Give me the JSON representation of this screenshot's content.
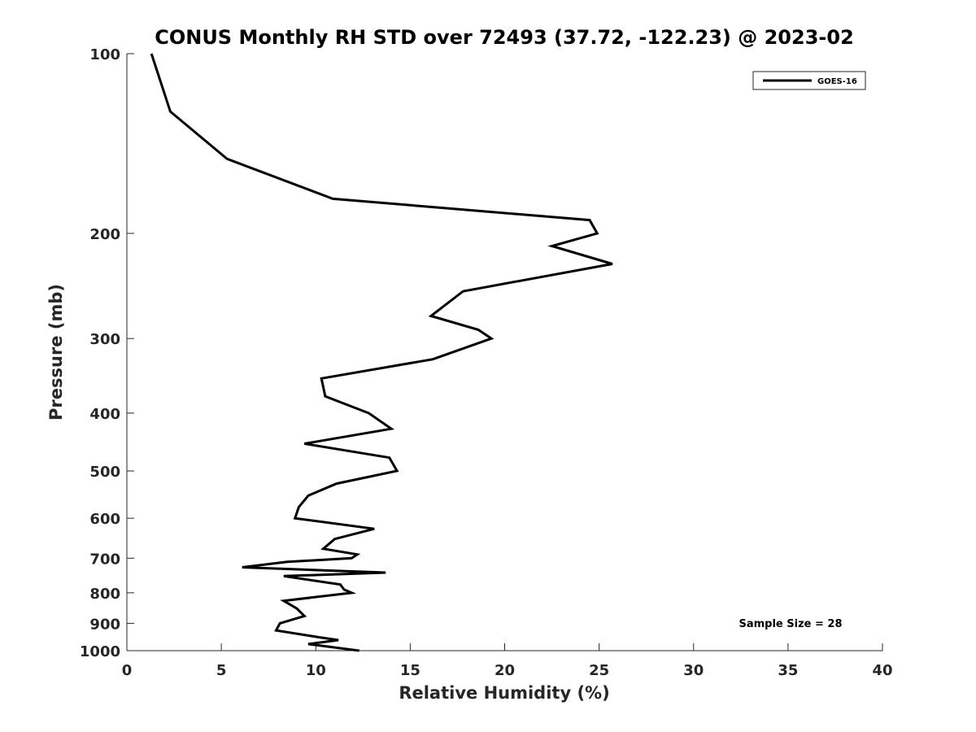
{
  "chart_data": {
    "type": "line",
    "title": "CONUS Monthly RH STD over 72493 (37.72, -122.23) @ 2023-02",
    "xlabel": "Relative Humidity (%)",
    "ylabel": "Pressure (mb)",
    "xlim": [
      0,
      40
    ],
    "ylim": [
      100,
      1000
    ],
    "y_scale": "log",
    "y_reversed": true,
    "x_ticks": [
      "0",
      "5",
      "10",
      "15",
      "20",
      "25",
      "30",
      "35",
      "40"
    ],
    "y_ticks": [
      "100",
      "200",
      "300",
      "400",
      "500",
      "600",
      "700",
      "800",
      "900",
      "1000"
    ],
    "grid": false,
    "legend_position": "top-right",
    "annotation": "Sample Size = 28",
    "series": [
      {
        "name": "GOES-16",
        "color": "#000000",
        "points": [
          [
            1.3,
            100
          ],
          [
            2.3,
            125
          ],
          [
            5.3,
            150
          ],
          [
            10.9,
            175
          ],
          [
            24.5,
            190
          ],
          [
            24.9,
            200
          ],
          [
            22.5,
            210
          ],
          [
            25.7,
            225
          ],
          [
            17.8,
            250
          ],
          [
            16.1,
            275
          ],
          [
            18.6,
            290
          ],
          [
            19.3,
            300
          ],
          [
            16.2,
            325
          ],
          [
            10.3,
            350
          ],
          [
            10.5,
            375
          ],
          [
            12.8,
            400
          ],
          [
            14.0,
            425
          ],
          [
            9.4,
            450
          ],
          [
            13.9,
            475
          ],
          [
            14.3,
            500
          ],
          [
            11.1,
            525
          ],
          [
            9.6,
            550
          ],
          [
            9.1,
            575
          ],
          [
            8.9,
            600
          ],
          [
            13.1,
            625
          ],
          [
            11.0,
            650
          ],
          [
            10.4,
            675
          ],
          [
            12.2,
            690
          ],
          [
            11.9,
            700
          ],
          [
            8.5,
            710
          ],
          [
            6.1,
            725
          ],
          [
            13.7,
            740
          ],
          [
            8.3,
            750
          ],
          [
            11.3,
            775
          ],
          [
            11.5,
            790
          ],
          [
            11.9,
            800
          ],
          [
            8.3,
            825
          ],
          [
            9.0,
            850
          ],
          [
            9.4,
            875
          ],
          [
            8.1,
            900
          ],
          [
            7.9,
            925
          ],
          [
            10.2,
            950
          ],
          [
            11.2,
            960
          ],
          [
            9.6,
            975
          ],
          [
            12.3,
            1000
          ]
        ]
      }
    ]
  }
}
